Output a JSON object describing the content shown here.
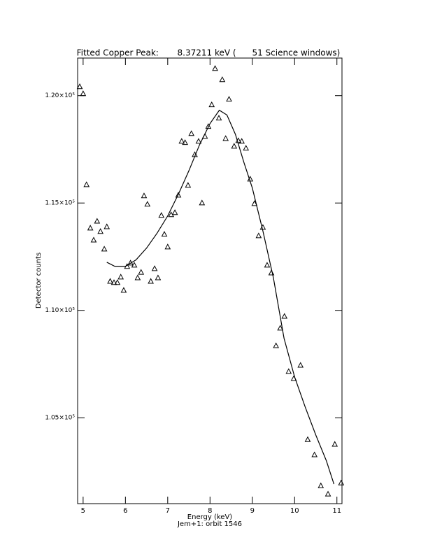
{
  "chart_data": {
    "type": "scatter",
    "title": "Fitted Copper Peak:       8.37211 keV (      51 Science windows)",
    "x_label": "Energy (keV)",
    "subtitle": "Jem+1: orbit 1546",
    "y_label": "Detector counts",
    "xlim": [
      4.87,
      11.12
    ],
    "xticks": [
      5,
      6,
      7,
      8,
      9,
      10,
      11
    ],
    "ylim": [
      101000,
      121750
    ],
    "yticks": [
      {
        "value": 105000,
        "label": "1.05×10⁵"
      },
      {
        "value": 110000,
        "label": "1.10×10⁵"
      },
      {
        "value": 115000,
        "label": "1.15×10⁵"
      },
      {
        "value": 120000,
        "label": "1.20×10⁵"
      }
    ],
    "color": "#000000",
    "series": [
      {
        "type": "scatter",
        "marker": "triangle",
        "x": [
          4.92,
          5.0,
          5.08,
          5.17,
          5.25,
          5.33,
          5.41,
          5.5,
          5.56,
          5.64,
          5.73,
          5.81,
          5.89,
          5.96,
          6.04,
          6.12,
          6.21,
          6.29,
          6.37,
          6.44,
          6.52,
          6.6,
          6.69,
          6.77,
          6.85,
          6.92,
          7.0,
          7.08,
          7.17,
          7.25,
          7.33,
          7.41,
          7.48,
          7.56,
          7.64,
          7.73,
          7.81,
          7.88,
          7.96,
          8.04,
          8.12,
          8.21,
          8.29,
          8.37,
          8.45,
          8.57,
          8.67,
          8.75,
          8.85,
          8.95,
          9.05,
          9.15,
          9.25,
          9.35,
          9.45,
          9.56,
          9.66,
          9.76,
          9.86,
          9.98,
          10.14,
          10.31,
          10.47,
          10.62,
          10.79,
          10.95,
          11.1
        ],
        "values": [
          120424,
          120098,
          115860,
          113840,
          113280,
          114160,
          113680,
          112860,
          113900,
          111360,
          111300,
          111300,
          111560,
          110940,
          112050,
          112210,
          112110,
          111520,
          111780,
          115340,
          114950,
          111360,
          111950,
          111520,
          114430,
          113550,
          112960,
          114460,
          114560,
          115370,
          117880,
          117820,
          115830,
          118240,
          117260,
          117880,
          115010,
          118110,
          118570,
          119580,
          121270,
          118960,
          120750,
          118010,
          119840,
          117650,
          117910,
          117880,
          117560,
          116120,
          114980,
          113480,
          113870,
          112110,
          111750,
          108360,
          109180,
          109730,
          107160,
          106830,
          107450,
          103990,
          103280,
          101840,
          101450,
          103770,
          101970
        ]
      },
      {
        "type": "line",
        "x": [
          5.56,
          5.75,
          6.0,
          6.25,
          6.5,
          6.75,
          7.0,
          7.25,
          7.5,
          7.75,
          8.0,
          8.22,
          8.4,
          8.6,
          8.8,
          9.0,
          9.25,
          9.5,
          9.75,
          10.0,
          10.25,
          10.5,
          10.75,
          10.93
        ],
        "values": [
          112240,
          112050,
          112050,
          112350,
          112900,
          113600,
          114400,
          115400,
          116500,
          117700,
          118700,
          119320,
          119100,
          118200,
          116900,
          115700,
          113700,
          111500,
          108700,
          106900,
          105500,
          104200,
          103000,
          101910
        ]
      }
    ]
  }
}
